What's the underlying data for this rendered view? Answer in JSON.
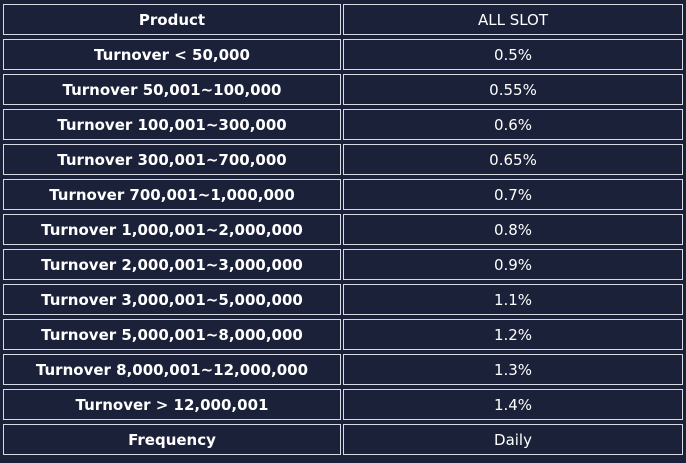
{
  "table": {
    "header": {
      "product": "Product",
      "column": "ALL SLOT"
    },
    "rows": [
      {
        "label": "Turnover  < 50,000",
        "value": "0.5%"
      },
      {
        "label": "Turnover 50,001~100,000",
        "value": "0.55%"
      },
      {
        "label": "Turnover 100,001~300,000",
        "value": "0.6%"
      },
      {
        "label": "Turnover 300,001~700,000",
        "value": "0.65%"
      },
      {
        "label": "Turnover 700,001~1,000,000",
        "value": "0.7%"
      },
      {
        "label": "Turnover 1,000,001~2,000,000",
        "value": "0.8%"
      },
      {
        "label": "Turnover 2,000,001~3,000,000",
        "value": "0.9%"
      },
      {
        "label": "Turnover 3,000,001~5,000,000",
        "value": "1.1%"
      },
      {
        "label": "Turnover 5,000,001~8,000,000",
        "value": "1.2%"
      },
      {
        "label": "Turnover 8,000,001~12,000,000",
        "value": "1.3%"
      },
      {
        "label": "Turnover > 12,000,001",
        "value": "1.4%"
      }
    ],
    "footer": {
      "label": "Frequency",
      "value": "Daily"
    }
  }
}
